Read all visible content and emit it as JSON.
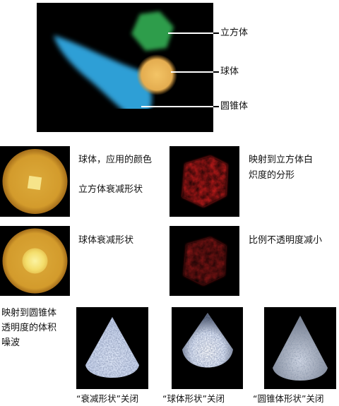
{
  "top_figure": {
    "labels": {
      "cube": "立方体",
      "sphere": "球体",
      "cone": "圆锥体"
    }
  },
  "row1": {
    "left_text_1": "球体，应用的颜色",
    "left_text_2": "立方体衰减形状",
    "right_text_line1": "映射到立方体白",
    "right_text_line2": "炽度的分形"
  },
  "row2": {
    "left_text": "球体衰减形状",
    "right_text": "比例不透明度减小"
  },
  "row3": {
    "side_text_line1": "映射到圆锥体",
    "side_text_line2": "透明度的体积",
    "side_text_line3": "噪波",
    "captions": [
      "“衰减形状”关闭",
      "“球体形状”关闭",
      "“圆锥体形状”关闭"
    ]
  }
}
